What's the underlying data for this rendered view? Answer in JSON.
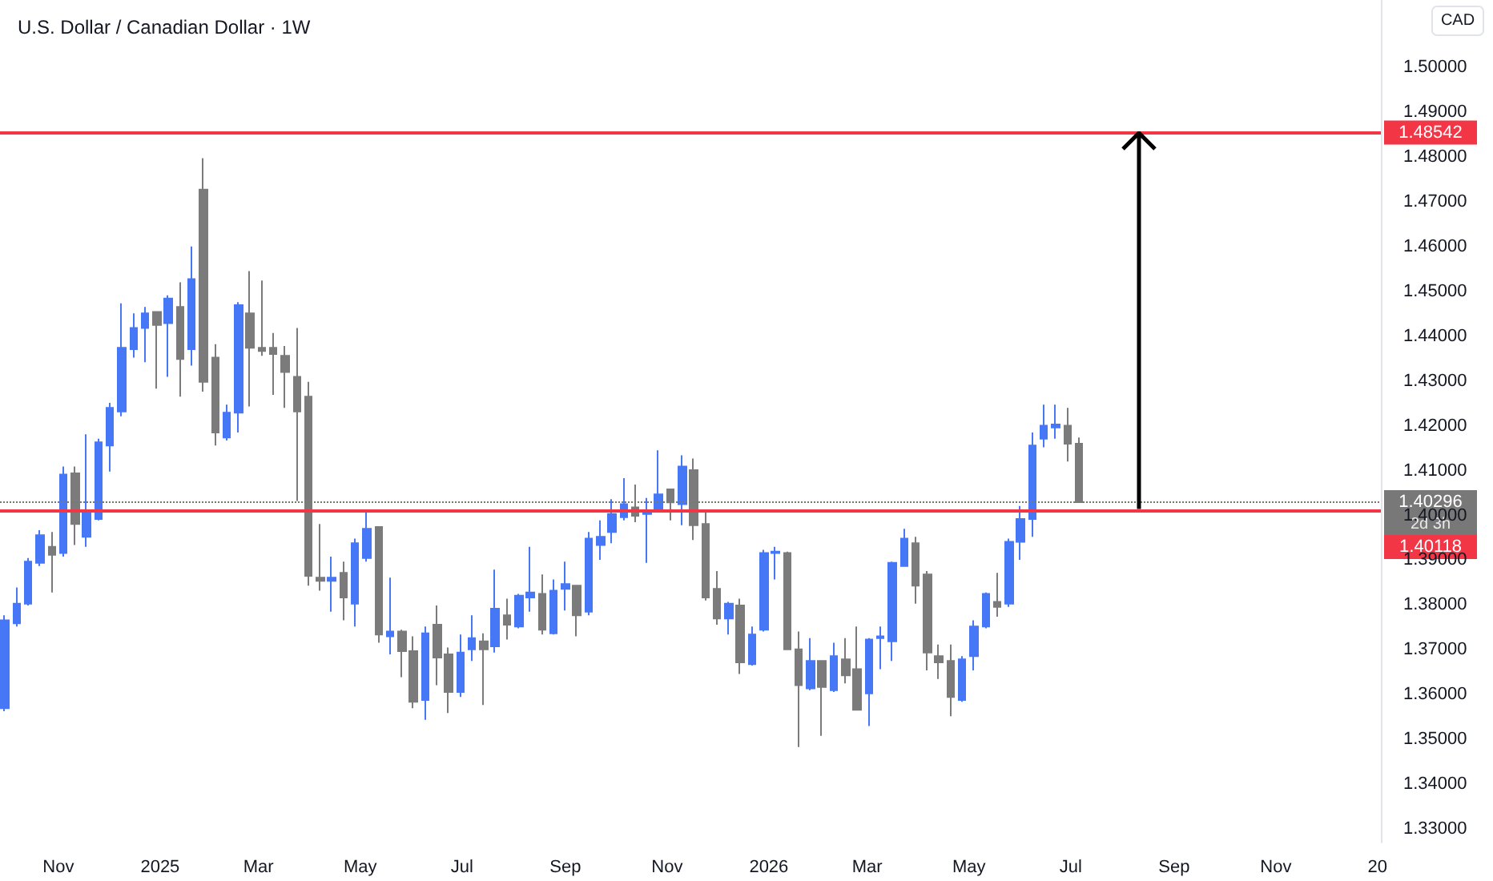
{
  "chart_data": {
    "type": "candlestick",
    "title": "U.S. Dollar / Canadian Dollar · 1W",
    "ylabel": "CAD",
    "x": [
      "2024-09-30",
      "2024-10-07",
      "2024-10-14",
      "2024-10-21",
      "2024-10-28",
      "2024-11-04",
      "2024-11-11",
      "2024-11-18",
      "2024-11-25",
      "2024-12-02",
      "2024-12-09",
      "2024-12-16",
      "2024-12-23",
      "2024-12-30",
      "2025-01-06",
      "2025-01-13",
      "2025-01-20",
      "2025-01-27",
      "2025-02-03",
      "2025-02-10",
      "2025-02-17",
      "2025-02-24",
      "2025-03-03",
      "2025-03-10",
      "2025-03-17",
      "2025-03-24",
      "2025-03-31",
      "2025-04-07",
      "2025-04-14",
      "2025-04-21",
      "2025-04-28",
      "2025-05-05",
      "2025-05-12",
      "2025-05-19",
      "2025-05-26",
      "2025-06-02",
      "2025-06-09",
      "2025-06-16",
      "2025-06-23",
      "2025-06-30",
      "2025-07-07",
      "2025-07-14",
      "2025-07-21",
      "2025-07-28",
      "2025-08-04",
      "2025-08-11",
      "2025-08-18",
      "2025-08-25",
      "2025-09-01",
      "2025-09-08",
      "2025-09-15",
      "2025-09-22",
      "2025-09-29",
      "2025-10-06",
      "2025-10-13",
      "2025-10-20",
      "2025-10-27",
      "2025-11-03",
      "2025-11-10",
      "2025-11-17",
      "2025-11-24",
      "2025-12-01",
      "2025-12-08",
      "2025-12-15",
      "2025-12-22",
      "2025-12-29",
      "2026-01-05",
      "2026-01-12",
      "2026-01-19",
      "2026-01-26",
      "2026-02-02",
      "2026-02-09",
      "2026-02-16",
      "2026-02-23",
      "2026-03-02",
      "2026-03-09",
      "2026-03-16",
      "2026-03-23",
      "2026-03-30",
      "2026-04-06",
      "2026-04-13",
      "2026-04-20",
      "2026-04-27",
      "2026-05-04",
      "2026-05-11",
      "2026-05-18",
      "2026-05-25",
      "2026-06-01",
      "2026-06-08",
      "2026-06-15",
      "2026-06-22",
      "2026-06-29",
      "2026-07-06"
    ],
    "ohlc": [
      [
        1.357,
        1.3777,
        1.3563,
        1.3766
      ],
      [
        1.3759,
        1.3839,
        1.3752,
        1.3803
      ],
      [
        1.3803,
        1.3905,
        1.3799,
        1.3897
      ],
      [
        1.3894,
        1.3967,
        1.3887,
        1.3956
      ],
      [
        1.393,
        1.3963,
        1.3828,
        1.3912
      ],
      [
        1.3916,
        1.4109,
        1.3908,
        1.4091
      ],
      [
        1.4094,
        1.4109,
        1.3934,
        1.3981
      ],
      [
        1.3952,
        1.4181,
        1.393,
        1.4007
      ],
      [
        1.3992,
        1.4171,
        1.3989,
        1.4163
      ],
      [
        1.4156,
        1.4251,
        1.4098,
        1.424
      ],
      [
        1.4232,
        1.4473,
        1.4221,
        1.4374
      ],
      [
        1.4371,
        1.4451,
        1.4352,
        1.4418
      ],
      [
        1.4418,
        1.4465,
        1.4342,
        1.4451
      ],
      [
        1.4454,
        1.4454,
        1.4283,
        1.4425
      ],
      [
        1.4429,
        1.4491,
        1.4309,
        1.4484
      ],
      [
        1.4465,
        1.452,
        1.4265,
        1.4349
      ],
      [
        1.4371,
        1.46,
        1.4334,
        1.4527
      ],
      [
        1.4727,
        1.4797,
        1.4276,
        1.4298
      ],
      [
        1.4352,
        1.4382,
        1.4156,
        1.4185
      ],
      [
        1.4174,
        1.4247,
        1.4167,
        1.4229
      ],
      [
        1.4229,
        1.4476,
        1.4185,
        1.4469
      ],
      [
        1.4451,
        1.4545,
        1.4243,
        1.4374
      ],
      [
        1.4374,
        1.4524,
        1.4356,
        1.4367
      ],
      [
        1.4374,
        1.4407,
        1.4269,
        1.436
      ],
      [
        1.4356,
        1.4378,
        1.424,
        1.432
      ],
      [
        1.4309,
        1.4418,
        1.4032,
        1.4232
      ],
      [
        1.4265,
        1.4298,
        1.3843,
        1.3865
      ],
      [
        1.3861,
        1.3981,
        1.3832,
        1.3854
      ],
      [
        1.3854,
        1.3908,
        1.3785,
        1.3861
      ],
      [
        1.3872,
        1.3897,
        1.3766,
        1.3817
      ],
      [
        1.3803,
        1.3948,
        1.3752,
        1.3938
      ],
      [
        1.3905,
        1.401,
        1.3897,
        1.397
      ],
      [
        1.3974,
        1.3974,
        1.3716,
        1.3734
      ],
      [
        1.373,
        1.3861,
        1.369,
        1.3741
      ],
      [
        1.3741,
        1.3745,
        1.3639,
        1.3697
      ],
      [
        1.3697,
        1.373,
        1.357,
        1.3584
      ],
      [
        1.3588,
        1.3752,
        1.3544,
        1.3737
      ],
      [
        1.3756,
        1.3799,
        1.3621,
        1.3683
      ],
      [
        1.369,
        1.3705,
        1.3559,
        1.3606
      ],
      [
        1.3606,
        1.3734,
        1.3595,
        1.3694
      ],
      [
        1.3701,
        1.3777,
        1.3675,
        1.3726
      ],
      [
        1.3719,
        1.3737,
        1.3577,
        1.3701
      ],
      [
        1.3708,
        1.3879,
        1.3694,
        1.3792
      ],
      [
        1.3777,
        1.3814,
        1.3723,
        1.3756
      ],
      [
        1.3752,
        1.3825,
        1.3748,
        1.3821
      ],
      [
        1.3817,
        1.393,
        1.3785,
        1.3828
      ],
      [
        1.3825,
        1.3868,
        1.3734,
        1.3745
      ],
      [
        1.3737,
        1.3857,
        1.3734,
        1.3832
      ],
      [
        1.3836,
        1.3897,
        1.3788,
        1.3847
      ],
      [
        1.3843,
        1.3843,
        1.373,
        1.3777
      ],
      [
        1.3785,
        1.3963,
        1.3777,
        1.3948
      ],
      [
        1.3934,
        1.3989,
        1.3901,
        1.3952
      ],
      [
        1.3963,
        1.4036,
        1.3938,
        1.4003
      ],
      [
        1.3996,
        1.4083,
        1.3989,
        1.4025
      ],
      [
        1.4018,
        1.4069,
        1.3985,
        1.3999
      ],
      [
        1.4003,
        1.4039,
        1.3894,
        1.4007
      ],
      [
        1.401,
        1.4145,
        1.4007,
        1.4047
      ],
      [
        1.4058,
        1.4058,
        1.3989,
        1.4029
      ],
      [
        1.4025,
        1.4134,
        1.3978,
        1.4109
      ],
      [
        1.4101,
        1.4127,
        1.3945,
        1.3978
      ],
      [
        1.3981,
        1.4007,
        1.381,
        1.3817
      ],
      [
        1.3836,
        1.3876,
        1.3756,
        1.377
      ],
      [
        1.377,
        1.3807,
        1.3734,
        1.3803
      ],
      [
        1.3799,
        1.3814,
        1.3646,
        1.3672
      ],
      [
        1.3668,
        1.3752,
        1.3665,
        1.3734
      ],
      [
        1.3745,
        1.3923,
        1.3741,
        1.3916
      ],
      [
        1.3916,
        1.393,
        1.3857,
        1.3919
      ],
      [
        1.3916,
        1.3919,
        1.3701,
        1.3701
      ],
      [
        1.3701,
        1.3741,
        1.3483,
        1.3621
      ],
      [
        1.3614,
        1.3726,
        1.361,
        1.3675
      ],
      [
        1.3675,
        1.3675,
        1.3508,
        1.3617
      ],
      [
        1.361,
        1.3716,
        1.3606,
        1.3686
      ],
      [
        1.3679,
        1.3726,
        1.3625,
        1.3643
      ],
      [
        1.3657,
        1.3752,
        1.3566,
        1.3566
      ],
      [
        1.3603,
        1.3726,
        1.353,
        1.3723
      ],
      [
        1.3726,
        1.3752,
        1.3657,
        1.373
      ],
      [
        1.3719,
        1.3897,
        1.3675,
        1.3894
      ],
      [
        1.3887,
        1.397,
        1.3887,
        1.3948
      ],
      [
        1.3938,
        1.3952,
        1.3803,
        1.3843
      ],
      [
        1.3868,
        1.3876,
        1.3654,
        1.3694
      ],
      [
        1.3686,
        1.3712,
        1.3635,
        1.3672
      ],
      [
        1.3675,
        1.3712,
        1.3552,
        1.3595
      ],
      [
        1.3588,
        1.3686,
        1.3584,
        1.3679
      ],
      [
        1.3686,
        1.3766,
        1.3654,
        1.3752
      ],
      [
        1.3752,
        1.3828,
        1.3748,
        1.3825
      ],
      [
        1.3807,
        1.3872,
        1.3774,
        1.3796
      ],
      [
        1.3803,
        1.3948,
        1.3796,
        1.3941
      ],
      [
        1.3941,
        1.4021,
        1.3901,
        1.3992
      ],
      [
        1.3992,
        1.4185,
        1.3952,
        1.4156
      ],
      [
        1.4171,
        1.4247,
        1.4152,
        1.42
      ],
      [
        1.4196,
        1.4247,
        1.4171,
        1.4203
      ],
      [
        1.42,
        1.424,
        1.412,
        1.416
      ],
      [
        1.416,
        1.4174,
        1.40296,
        1.40296
      ]
    ],
    "colors": [
      "#4677f6",
      "#4677f6",
      "#4677f6",
      "#4677f6",
      "#7b7b7b",
      "#4677f6",
      "#7b7b7b",
      "#4677f6",
      "#4677f6",
      "#4677f6",
      "#4677f6",
      "#4677f6",
      "#4677f6",
      "#7b7b7b",
      "#4677f6",
      "#7b7b7b",
      "#4677f6",
      "#7b7b7b",
      "#7b7b7b",
      "#4677f6",
      "#4677f6",
      "#7b7b7b",
      "#7b7b7b",
      "#7b7b7b",
      "#7b7b7b",
      "#7b7b7b",
      "#7b7b7b",
      "#7b7b7b",
      "#4677f6",
      "#7b7b7b",
      "#4677f6",
      "#4677f6",
      "#7b7b7b",
      "#4677f6",
      "#7b7b7b",
      "#7b7b7b",
      "#4677f6",
      "#7b7b7b",
      "#7b7b7b",
      "#4677f6",
      "#4677f6",
      "#7b7b7b",
      "#4677f6",
      "#7b7b7b",
      "#4677f6",
      "#4677f6",
      "#7b7b7b",
      "#4677f6",
      "#4677f6",
      "#7b7b7b",
      "#4677f6",
      "#4677f6",
      "#4677f6",
      "#4677f6",
      "#7b7b7b",
      "#4677f6",
      "#4677f6",
      "#7b7b7b",
      "#4677f6",
      "#7b7b7b",
      "#7b7b7b",
      "#7b7b7b",
      "#4677f6",
      "#7b7b7b",
      "#4677f6",
      "#4677f6",
      "#4677f6",
      "#7b7b7b",
      "#7b7b7b",
      "#4677f6",
      "#7b7b7b",
      "#4677f6",
      "#7b7b7b",
      "#7b7b7b",
      "#4677f6",
      "#4677f6",
      "#4677f6",
      "#4677f6",
      "#7b7b7b",
      "#7b7b7b",
      "#7b7b7b",
      "#7b7b7b",
      "#4677f6",
      "#4677f6",
      "#4677f6",
      "#7b7b7b",
      "#4677f6",
      "#4677f6",
      "#4677f6",
      "#4677f6",
      "#4677f6",
      "#7b7b7b",
      "#7b7b7b"
    ],
    "xlim": [
      "2024-09-27",
      "2027-01-03"
    ],
    "xticks": [
      {
        "value": "2024-11-01",
        "label": "Nov"
      },
      {
        "value": "2025-01-01",
        "label": "2025"
      },
      {
        "value": "2025-03-01",
        "label": "Mar"
      },
      {
        "value": "2025-05-01",
        "label": "May"
      },
      {
        "value": "2025-07-01",
        "label": "Jul"
      },
      {
        "value": "2025-09-01",
        "label": "Sep"
      },
      {
        "value": "2025-11-01",
        "label": "Nov"
      },
      {
        "value": "2026-01-01",
        "label": "2026"
      },
      {
        "value": "2026-03-01",
        "label": "Mar"
      },
      {
        "value": "2026-05-01",
        "label": "May"
      },
      {
        "value": "2026-07-01",
        "label": "Jul"
      },
      {
        "value": "2026-09-01",
        "label": "Sep"
      },
      {
        "value": "2026-11-01",
        "label": "Nov"
      },
      {
        "value": "2027-01-01",
        "label": "20"
      }
    ],
    "ylim": [
      1.327,
      1.515
    ],
    "yticks": [
      {
        "value": 1.33,
        "label": "1.33000"
      },
      {
        "value": 1.34,
        "label": "1.34000"
      },
      {
        "value": 1.35,
        "label": "1.35000"
      },
      {
        "value": 1.36,
        "label": "1.36000"
      },
      {
        "value": 1.37,
        "label": "1.37000"
      },
      {
        "value": 1.38,
        "label": "1.38000"
      },
      {
        "value": 1.39,
        "label": "1.39000"
      },
      {
        "value": 1.4,
        "label": "1.40000"
      },
      {
        "value": 1.41,
        "label": "1.41000"
      },
      {
        "value": 1.42,
        "label": "1.42000"
      },
      {
        "value": 1.43,
        "label": "1.43000"
      },
      {
        "value": 1.44,
        "label": "1.44000"
      },
      {
        "value": 1.45,
        "label": "1.45000"
      },
      {
        "value": 1.46,
        "label": "1.46000"
      },
      {
        "value": 1.47,
        "label": "1.47000"
      },
      {
        "value": 1.48,
        "label": "1.48000"
      },
      {
        "value": 1.49,
        "label": "1.49000"
      },
      {
        "value": 1.5,
        "label": "1.50000"
      }
    ],
    "ref_lines": [
      {
        "axis": "y",
        "value": 1.48542,
        "label": "1.48542",
        "color": "#f23645"
      },
      {
        "axis": "y",
        "value": 1.40118,
        "label": "1.40118",
        "color": "#f23645"
      },
      {
        "axis": "y",
        "value": 1.40296,
        "label": "1.40296",
        "color": "#787878",
        "line_style": "dotted"
      }
    ],
    "annotations": [
      "2d 3h"
    ]
  }
}
